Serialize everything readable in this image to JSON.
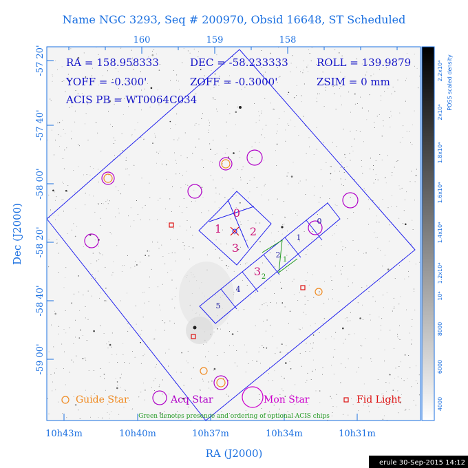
{
  "title": "Name NGC 3293, Seq # 200970, Obsid 16648, ST Scheduled",
  "top_ticks": [
    "160",
    "159",
    "158"
  ],
  "bottom_ticks": [
    "10h43m",
    "10h40m",
    "10h37m",
    "10h34m",
    "10h31m"
  ],
  "left_ticks": [
    "-57 20'",
    "-57 40'",
    "-58 00'",
    "-58 20'",
    "-58 40'",
    "-59 00'"
  ],
  "xlabel": "RA (J2000)",
  "ylabel": "Dec (J2000)",
  "info": {
    "ra": "RA = 158.958333",
    "dec": "DEC = -58.233333",
    "roll": "ROLL = 139.9879",
    "yoff": "YOFF = -0.300'",
    "zoff": "ZOFF = -0.3000'",
    "zsim": "ZSIM = 0 mm",
    "acis_pb": "ACIS PB = WT0064C034"
  },
  "chips": {
    "i0": "0",
    "i1": "1",
    "i2": "2",
    "i3": "3",
    "s0": "0",
    "s1": "1",
    "s2": "2",
    "s3": "3",
    "s4": "4",
    "s5": "5",
    "green_1": "1",
    "green_2": "2"
  },
  "legend": {
    "guide": "Guide Star",
    "acq": "Acq Star",
    "mon": "Mon Star",
    "fid": "Fid Light",
    "note": "Green denotes presence and ordering of optional ACIS chips"
  },
  "colorbar": {
    "label": "POSS scaled density",
    "ticks": [
      "2.2x10⁴",
      "2x10⁴",
      "1.8x10⁴",
      "1.6x10⁴",
      "1.4x10⁴",
      "1.2x10⁴",
      "10⁴",
      "8000",
      "6000",
      "4000"
    ]
  },
  "footer": "erule 30-Sep-2015 14:12",
  "colors": {
    "axis": "#1a6fe0",
    "title": "#1a6fe0",
    "info": "#1515c8",
    "field": "#2222ee",
    "guide": "#f08a20",
    "acq": "#b000c8",
    "mon": "#cc00cc",
    "fid": "#dd1111",
    "green": "#229922",
    "chip_magenta": "#cc1177",
    "chip_blue": "#1a1aa0"
  }
}
